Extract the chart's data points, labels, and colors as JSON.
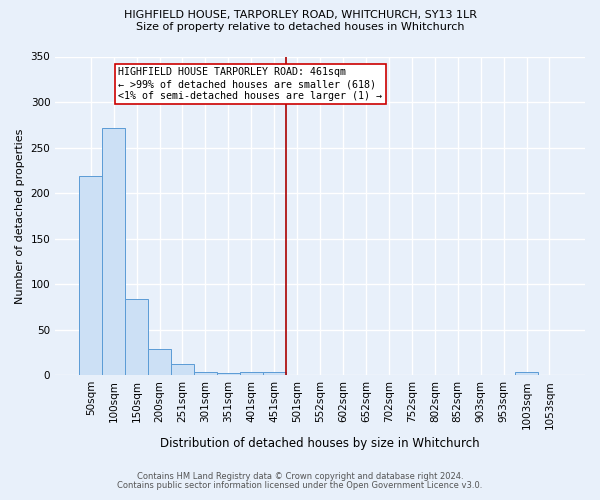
{
  "title1": "HIGHFIELD HOUSE, TARPORLEY ROAD, WHITCHURCH, SY13 1LR",
  "title2": "Size of property relative to detached houses in Whitchurch",
  "xlabel": "Distribution of detached houses by size in Whitchurch",
  "ylabel": "Number of detached properties",
  "footer1": "Contains HM Land Registry data © Crown copyright and database right 2024.",
  "footer2": "Contains public sector information licensed under the Open Government Licence v3.0.",
  "bin_labels": [
    "50sqm",
    "100sqm",
    "150sqm",
    "200sqm",
    "251sqm",
    "301sqm",
    "351sqm",
    "401sqm",
    "451sqm",
    "501sqm",
    "552sqm",
    "602sqm",
    "652sqm",
    "702sqm",
    "752sqm",
    "802sqm",
    "852sqm",
    "903sqm",
    "953sqm",
    "1003sqm",
    "1053sqm"
  ],
  "bin_values": [
    219,
    271,
    84,
    29,
    12,
    4,
    2,
    3,
    4,
    0,
    0,
    0,
    0,
    0,
    0,
    0,
    0,
    0,
    0,
    3,
    0
  ],
  "bar_color": "#cce0f5",
  "bar_edge_color": "#5b9bd5",
  "bg_color": "#e8f0fa",
  "grid_color": "#ffffff",
  "vline_x": 8.5,
  "vline_color": "#aa0000",
  "annotation_text": "HIGHFIELD HOUSE TARPORLEY ROAD: 461sqm\n← >99% of detached houses are smaller (618)\n<1% of semi-detached houses are larger (1) →",
  "annotation_box_color": "#ffffff",
  "annotation_box_edge": "#cc0000",
  "ylim": [
    0,
    350
  ],
  "yticks": [
    0,
    50,
    100,
    150,
    200,
    250,
    300,
    350
  ],
  "title1_fontsize": 8.0,
  "title2_fontsize": 8.0,
  "xlabel_fontsize": 8.5,
  "ylabel_fontsize": 8.0,
  "tick_fontsize": 7.5,
  "footer_fontsize": 6.0,
  "annot_fontsize": 7.2
}
